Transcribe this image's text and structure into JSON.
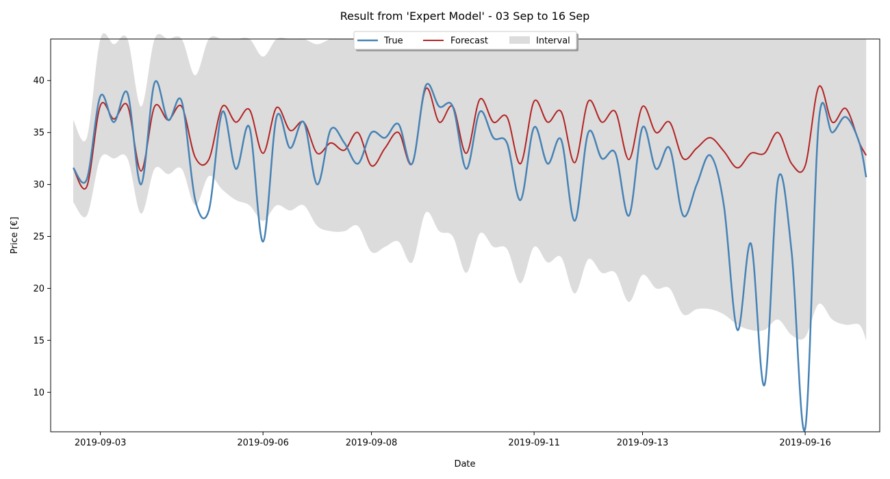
{
  "chart_data": {
    "type": "line",
    "title": "Result from 'Expert Model' - 03 Sep to 16 Sep",
    "xlabel": "Date",
    "ylabel": "Price [€]",
    "xlim": [
      "2019-09-02T02:00",
      "2019-09-17T09:00"
    ],
    "ylim": [
      6.2,
      44
    ],
    "x_ticks": [
      "2019-09-03",
      "2019-09-06",
      "2019-09-08",
      "2019-09-11",
      "2019-09-13",
      "2019-09-16"
    ],
    "y_ticks": [
      10,
      15,
      20,
      25,
      30,
      35,
      40
    ],
    "grid": false,
    "legend_position": "top-center",
    "colors": {
      "true": "#4682b4",
      "forecast": "#b22222",
      "interval": "#dcdcdc"
    },
    "x": [
      "2019-09-02T12:00",
      "2019-09-02T18:00",
      "2019-09-03T00:00",
      "2019-09-03T06:00",
      "2019-09-03T12:00",
      "2019-09-03T18:00",
      "2019-09-04T00:00",
      "2019-09-04T06:00",
      "2019-09-04T12:00",
      "2019-09-04T18:00",
      "2019-09-05T00:00",
      "2019-09-05T06:00",
      "2019-09-05T12:00",
      "2019-09-05T18:00",
      "2019-09-06T00:00",
      "2019-09-06T06:00",
      "2019-09-06T12:00",
      "2019-09-06T18:00",
      "2019-09-07T00:00",
      "2019-09-07T06:00",
      "2019-09-07T12:00",
      "2019-09-07T18:00",
      "2019-09-08T00:00",
      "2019-09-08T06:00",
      "2019-09-08T12:00",
      "2019-09-08T18:00",
      "2019-09-09T00:00",
      "2019-09-09T06:00",
      "2019-09-09T12:00",
      "2019-09-09T18:00",
      "2019-09-10T00:00",
      "2019-09-10T06:00",
      "2019-09-10T12:00",
      "2019-09-10T18:00",
      "2019-09-11T00:00",
      "2019-09-11T06:00",
      "2019-09-11T12:00",
      "2019-09-11T18:00",
      "2019-09-12T00:00",
      "2019-09-12T06:00",
      "2019-09-12T12:00",
      "2019-09-12T18:00",
      "2019-09-13T00:00",
      "2019-09-13T06:00",
      "2019-09-13T12:00",
      "2019-09-13T18:00",
      "2019-09-14T00:00",
      "2019-09-14T06:00",
      "2019-09-14T12:00",
      "2019-09-14T18:00",
      "2019-09-15T00:00",
      "2019-09-15T06:00",
      "2019-09-15T12:00",
      "2019-09-15T18:00",
      "2019-09-16T00:00",
      "2019-09-16T06:00",
      "2019-09-16T12:00",
      "2019-09-16T18:00",
      "2019-09-17T00:00",
      "2019-09-17T03:00"
    ],
    "series": [
      {
        "name": "True",
        "values": [
          31.6,
          30.5,
          38.5,
          36.0,
          38.8,
          30.0,
          39.8,
          36.2,
          38.0,
          28.5,
          27.5,
          37.0,
          31.5,
          35.5,
          24.5,
          36.5,
          33.5,
          36.0,
          30.0,
          35.3,
          34.0,
          32.0,
          35.0,
          34.5,
          35.8,
          32.0,
          39.5,
          37.5,
          37.5,
          31.5,
          37.0,
          34.5,
          34.0,
          28.5,
          35.5,
          32.0,
          34.3,
          26.5,
          35.0,
          32.5,
          33.0,
          27.0,
          35.5,
          31.5,
          33.5,
          27.0,
          30.0,
          32.8,
          28.0,
          16.0,
          24.3,
          10.7,
          30.5,
          23.5,
          6.5,
          36.0,
          35.0,
          36.5,
          34.0,
          30.7
        ]
      },
      {
        "name": "Forecast",
        "values": [
          31.6,
          29.8,
          37.6,
          36.3,
          37.6,
          31.3,
          37.5,
          36.2,
          37.5,
          32.6,
          32.4,
          37.5,
          36.0,
          37.2,
          33.0,
          37.4,
          35.2,
          36.0,
          33.0,
          34.0,
          33.3,
          35.0,
          31.8,
          33.5,
          35.0,
          32.0,
          39.2,
          36.0,
          37.5,
          33.0,
          38.2,
          36.0,
          36.5,
          32.0,
          38.0,
          36.0,
          37.0,
          32.1,
          38.0,
          36.0,
          37.0,
          32.4,
          37.5,
          35.0,
          36.0,
          32.5,
          33.5,
          34.5,
          33.2,
          31.6,
          33.0,
          33.0,
          35.0,
          32.0,
          31.8,
          39.4,
          36.0,
          37.3,
          34.0,
          32.8
        ]
      },
      {
        "name": "Interval",
        "lower": [
          28.3,
          27.0,
          32.5,
          32.5,
          32.5,
          27.2,
          31.5,
          31.0,
          31.5,
          28.0,
          30.8,
          29.5,
          28.5,
          28.0,
          26.5,
          28.0,
          27.5,
          28.0,
          26.0,
          25.5,
          25.5,
          26.0,
          23.5,
          24.0,
          24.5,
          22.5,
          27.3,
          25.5,
          25.0,
          21.5,
          25.3,
          24.0,
          23.8,
          20.5,
          24.0,
          22.5,
          23.0,
          19.5,
          22.8,
          21.5,
          21.5,
          18.7,
          21.3,
          20.0,
          20.0,
          17.5,
          18.0,
          18.0,
          17.5,
          16.5,
          16.0,
          16.0,
          17.0,
          15.5,
          15.3,
          18.5,
          17.0,
          16.5,
          16.5,
          15.0
        ],
        "upper": [
          36.2,
          34.5,
          44,
          43.5,
          44,
          37.5,
          44,
          44,
          44,
          40.5,
          44,
          44,
          44,
          44,
          42.3,
          44,
          44,
          44,
          43.5,
          44,
          44,
          44,
          44,
          44,
          44,
          44,
          44,
          44,
          44,
          44,
          44,
          44,
          44,
          44,
          44,
          44,
          44,
          44,
          44,
          44,
          44,
          44,
          44,
          44,
          44,
          44,
          44,
          44,
          44,
          44,
          44,
          44,
          44,
          44,
          44,
          44,
          44,
          44,
          44,
          44
        ]
      }
    ]
  }
}
